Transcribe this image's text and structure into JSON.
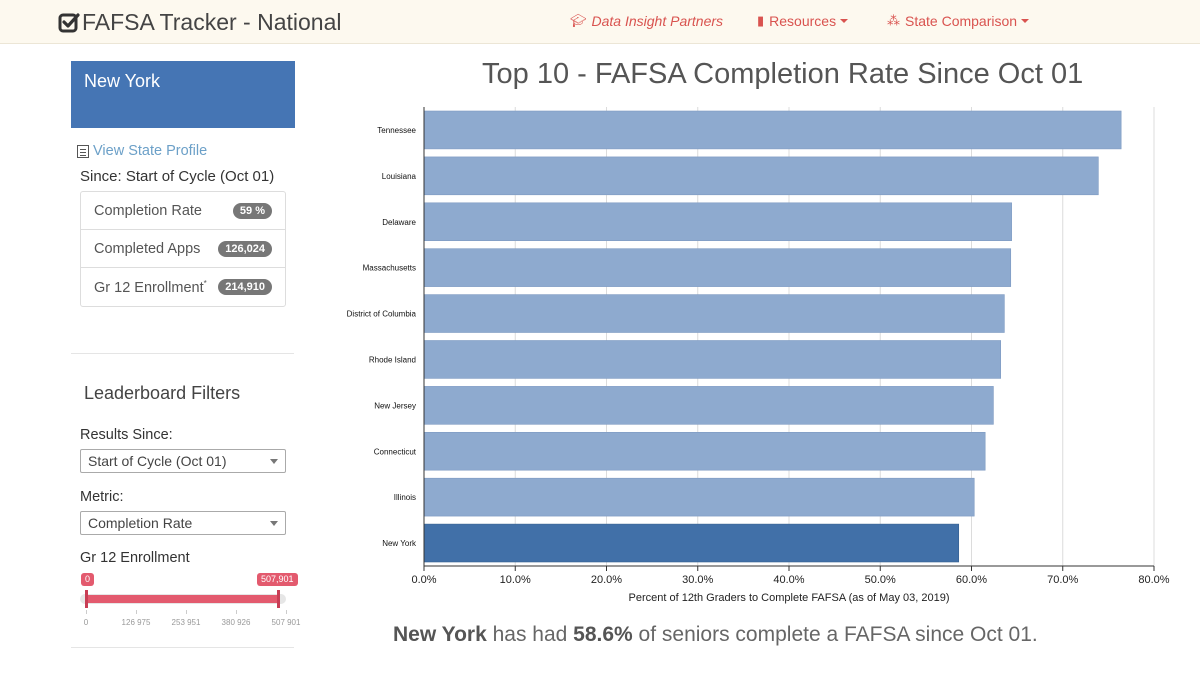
{
  "nav": {
    "brand": "FAFSA Tracker - National",
    "links": [
      {
        "label": "Data Insight Partners",
        "icon": "graduation-cap-icon"
      },
      {
        "label": "Resources",
        "icon": "book-icon"
      },
      {
        "label": "State Comparison",
        "icon": "sitemap-icon"
      }
    ]
  },
  "sidebar": {
    "state": "New York",
    "profile_link": "View State Profile",
    "since_label": "Since: Start of Cycle (Oct 01)",
    "stats": [
      {
        "label": "Completion Rate",
        "value": "59 %"
      },
      {
        "label": "Completed Apps",
        "value": "126,024"
      },
      {
        "label": "Gr 12 Enrollment",
        "sup": "*",
        "value": "214,910"
      }
    ],
    "filters_title": "Leaderboard Filters",
    "results_since_label": "Results Since:",
    "results_since_value": "Start of Cycle (Oct 01)",
    "metric_label": "Metric:",
    "metric_value": "Completion Rate",
    "enrollment_label": "Gr 12 Enrollment",
    "slider": {
      "min_label": "0",
      "max_label": "507,901",
      "ticks": [
        "0",
        "126 975",
        "253 951",
        "380 926",
        "507 901"
      ]
    }
  },
  "chart_data": {
    "type": "bar",
    "orientation": "horizontal",
    "title": "Top 10 - FAFSA Completion Rate Since Oct 01",
    "xlabel": "Percent of 12th Graders to Complete FAFSA (as of May 03, 2019)",
    "xlim": [
      0,
      0.8
    ],
    "xticks": [
      "0.0%",
      "10.0%",
      "20.0%",
      "30.0%",
      "40.0%",
      "50.0%",
      "60.0%",
      "70.0%",
      "80.0%"
    ],
    "categories": [
      "Tennessee",
      "Louisiana",
      "Delaware",
      "Massachusetts",
      "District of Columbia",
      "Rhode Island",
      "New Jersey",
      "Connecticut",
      "Illinois",
      "New York"
    ],
    "values": [
      0.764,
      0.739,
      0.644,
      0.643,
      0.636,
      0.632,
      0.624,
      0.615,
      0.603,
      0.586
    ],
    "highlight": "New York",
    "colors": {
      "bar": "#8eaacf",
      "highlight": "#4170a8"
    },
    "grid": true
  },
  "summary": {
    "state": "New York",
    "pre": " has had ",
    "pct": "58.6%",
    "post": " of seniors complete a FAFSA since Oct 01."
  }
}
